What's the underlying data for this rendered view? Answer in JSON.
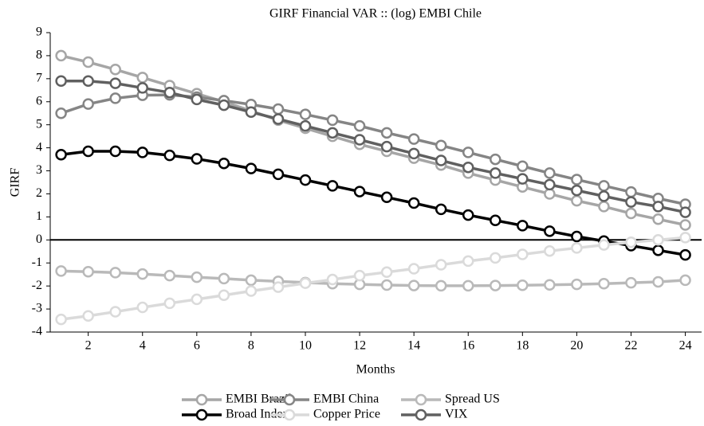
{
  "chart_data": {
    "type": "line",
    "title": "GIRF Financial VAR :: (log) EMBI Chile",
    "xlabel": "Months",
    "ylabel": "GIRF",
    "x": [
      1,
      2,
      3,
      4,
      5,
      6,
      7,
      8,
      9,
      10,
      11,
      12,
      13,
      14,
      15,
      16,
      17,
      18,
      19,
      20,
      21,
      22,
      23,
      24
    ],
    "xlim": [
      0.6,
      24.6
    ],
    "xticks": [
      2,
      4,
      6,
      8,
      10,
      12,
      14,
      16,
      18,
      20,
      22,
      24
    ],
    "ylim": [
      -4,
      9
    ],
    "yticks": [
      -4,
      -3,
      -2,
      -1,
      0,
      1,
      2,
      3,
      4,
      5,
      6,
      7,
      8,
      9
    ],
    "legend": "bottom",
    "series": [
      {
        "name": "EMBI Brazil",
        "color": "#a6a6a6",
        "values": [
          8.0,
          7.72,
          7.4,
          7.05,
          6.7,
          6.35,
          6.0,
          5.6,
          5.2,
          4.85,
          4.5,
          4.15,
          3.85,
          3.55,
          3.25,
          2.9,
          2.6,
          2.3,
          2.0,
          1.7,
          1.45,
          1.15,
          0.9,
          0.65
        ]
      },
      {
        "name": "EMBI China",
        "color": "#858585",
        "values": [
          5.5,
          5.9,
          6.15,
          6.28,
          6.3,
          6.2,
          6.05,
          5.88,
          5.68,
          5.45,
          5.2,
          4.95,
          4.65,
          4.38,
          4.1,
          3.8,
          3.5,
          3.2,
          2.9,
          2.62,
          2.35,
          2.08,
          1.8,
          1.55
        ]
      },
      {
        "name": "Spread US",
        "color": "#b9b9b9",
        "values": [
          -1.35,
          -1.38,
          -1.42,
          -1.48,
          -1.55,
          -1.62,
          -1.68,
          -1.75,
          -1.8,
          -1.85,
          -1.9,
          -1.93,
          -1.96,
          -1.98,
          -1.99,
          -1.99,
          -1.98,
          -1.97,
          -1.95,
          -1.93,
          -1.9,
          -1.86,
          -1.82,
          -1.75
        ]
      },
      {
        "name": "Broad Index",
        "color": "#000000",
        "values": [
          3.7,
          3.85,
          3.85,
          3.8,
          3.67,
          3.52,
          3.32,
          3.1,
          2.85,
          2.6,
          2.35,
          2.1,
          1.85,
          1.6,
          1.33,
          1.08,
          0.85,
          0.62,
          0.38,
          0.15,
          -0.05,
          -0.25,
          -0.45,
          -0.65
        ]
      },
      {
        "name": "Copper Price",
        "color": "#dadada",
        "values": [
          -3.45,
          -3.3,
          -3.12,
          -2.93,
          -2.75,
          -2.58,
          -2.4,
          -2.22,
          -2.05,
          -1.88,
          -1.72,
          -1.55,
          -1.4,
          -1.25,
          -1.08,
          -0.92,
          -0.78,
          -0.63,
          -0.48,
          -0.35,
          -0.22,
          -0.1,
          0.0,
          0.1
        ]
      },
      {
        "name": "VIX",
        "color": "#606060",
        "values": [
          6.9,
          6.9,
          6.8,
          6.6,
          6.4,
          6.1,
          5.85,
          5.55,
          5.25,
          4.95,
          4.65,
          4.35,
          4.05,
          3.75,
          3.45,
          3.15,
          2.9,
          2.65,
          2.4,
          2.15,
          1.9,
          1.65,
          1.45,
          1.2
        ]
      }
    ]
  }
}
